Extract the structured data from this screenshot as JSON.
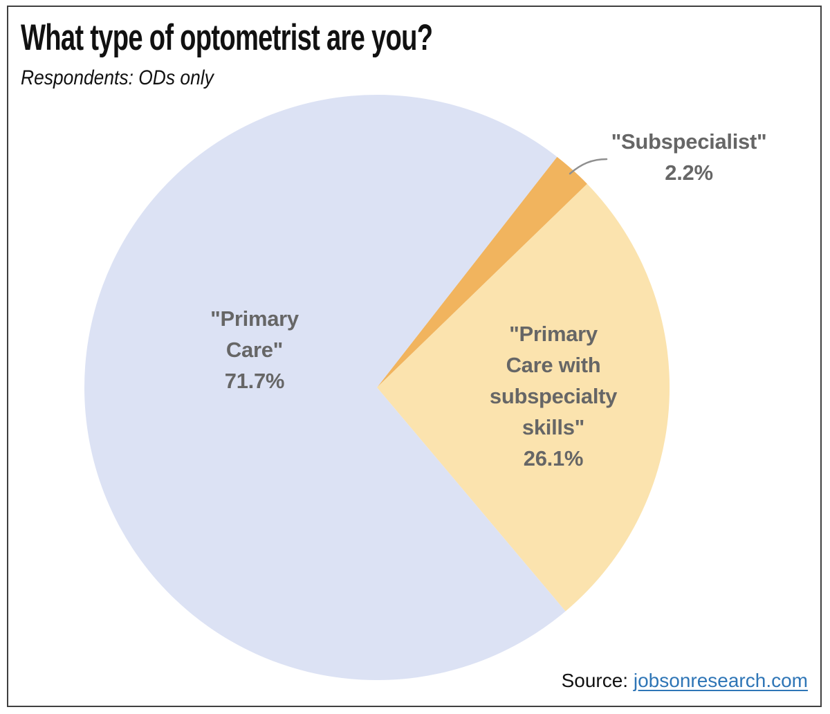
{
  "chart_data": {
    "type": "pie",
    "title": "What type of optometrist are you?",
    "subtitle": "Respondents: ODs only",
    "legend": "none",
    "start_angle_deg": 38,
    "total": 100,
    "slices": [
      {
        "label": "Subspecialist",
        "value": 2.2,
        "color": "#f1b45e",
        "display": "\"Subspecialist\"\n2.2%"
      },
      {
        "label": "Primary Care with subspecialty skills",
        "value": 26.1,
        "color": "#fbe3ae",
        "display": "\"Primary\nCare with\nsubspecialty\nskills\"\n26.1%"
      },
      {
        "label": "Primary Care",
        "value": 71.7,
        "color": "#dce2f4",
        "display": "\"Primary\nCare\"\n71.7%"
      }
    ],
    "label_color": "#666666",
    "leader_line_color": "#8f8f8f"
  },
  "source": {
    "prefix": "Source: ",
    "link_text": "jobsonresearch.com",
    "link_color": "#2e75b6"
  }
}
